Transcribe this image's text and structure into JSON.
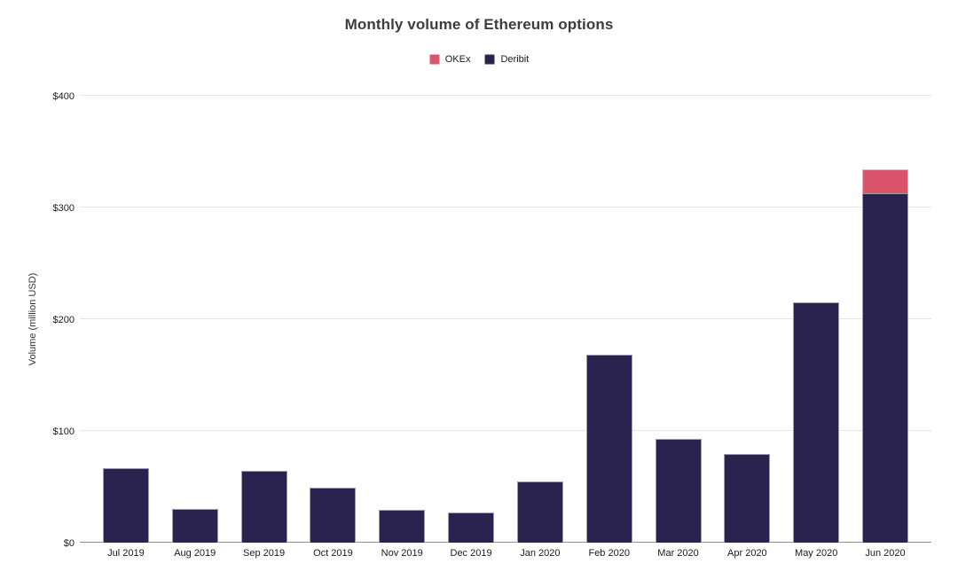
{
  "chart_data": {
    "type": "bar",
    "stacked": true,
    "title": "Monthly volume of Ethereum options",
    "xlabel": "",
    "ylabel": "Volume (million USD)",
    "ylim": [
      0,
      400
    ],
    "grid": true,
    "legend_position": "top",
    "yticks": [
      {
        "value": 0,
        "label": "$0"
      },
      {
        "value": 100,
        "label": "$100"
      },
      {
        "value": 200,
        "label": "$200"
      },
      {
        "value": 300,
        "label": "$300"
      },
      {
        "value": 400,
        "label": "$400"
      }
    ],
    "categories": [
      "Jul 2019",
      "Aug 2019",
      "Sep 2019",
      "Oct 2019",
      "Nov 2019",
      "Dec 2019",
      "Jan 2020",
      "Feb 2020",
      "Mar 2020",
      "Apr 2020",
      "May 2020",
      "Jun 2020"
    ],
    "series": [
      {
        "name": "OKEx",
        "color": "#d9556b",
        "values": [
          0,
          0,
          0,
          0,
          0,
          0,
          0,
          0,
          0,
          0,
          0,
          21
        ]
      },
      {
        "name": "Deribit",
        "color": "#2a234f",
        "values": [
          67,
          30,
          64,
          49,
          29,
          27,
          55,
          168,
          93,
          79,
          215,
          313
        ]
      }
    ]
  },
  "colors": {
    "okex": "#d9556b",
    "deribit": "#2a234f",
    "gridline": "#e5e5e5",
    "axisline": "#8f8f8f",
    "title_text": "#3d3d3d"
  }
}
